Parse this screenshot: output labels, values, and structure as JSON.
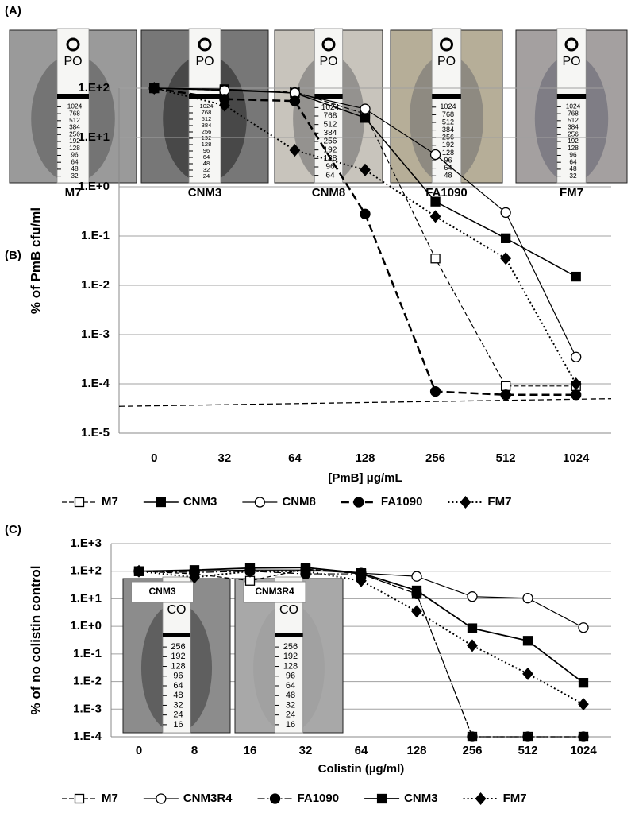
{
  "panel_a": {
    "label": "(A)",
    "photos": [
      {
        "caption": "M7",
        "strip_label": "PO",
        "strip_scale": [
          1024,
          768,
          512,
          384,
          256,
          192,
          128,
          96,
          64,
          48,
          32
        ]
      },
      {
        "caption": "CNM3",
        "strip_label": "PO",
        "strip_scale": [
          1024,
          768,
          512,
          384,
          256,
          192,
          128,
          96,
          64,
          48,
          32,
          24
        ]
      },
      {
        "caption": "CNM8",
        "strip_label": "PO",
        "strip_scale": [
          1024,
          768,
          512,
          384,
          256,
          192,
          128,
          96,
          64
        ]
      },
      {
        "caption": "FA1090",
        "strip_label": "PO",
        "strip_scale": [
          1024,
          768,
          512,
          384,
          256,
          192,
          128,
          96,
          64,
          48
        ]
      },
      {
        "caption": "FM7",
        "strip_label": "PO",
        "strip_scale": [
          1024,
          768,
          512,
          384,
          256,
          192,
          128,
          96,
          64,
          48,
          32
        ]
      }
    ]
  },
  "chart_data": [
    {
      "type": "line",
      "panel_label": "(B)",
      "ylabel": "% of PmB cfu/ml",
      "xlabel": "[PmB] μg/mL",
      "log_y": true,
      "grid": true,
      "categories": [
        0,
        32,
        64,
        128,
        256,
        512,
        1024
      ],
      "ylim": [
        1e-05,
        100
      ],
      "yticks": [
        {
          "value": 100,
          "label": "1.E+2"
        },
        {
          "value": 10,
          "label": "1.E+1"
        },
        {
          "value": 1,
          "label": "1.E+0"
        },
        {
          "value": 0.1,
          "label": "1.E-1"
        },
        {
          "value": 0.01,
          "label": "1.E-2"
        },
        {
          "value": 0.001,
          "label": "1.E-3"
        },
        {
          "value": 0.0001,
          "label": "1.E-4"
        },
        {
          "value": 1e-05,
          "label": "1.E-5"
        }
      ],
      "detection_limit": [
        3.5e-05,
        5e-05
      ],
      "series": [
        {
          "name": "M7",
          "color": "#000000",
          "marker": "square",
          "filled": false,
          "line_style": "dashed",
          "line_width": 1.2,
          "values": [
            100,
            90,
            85,
            30,
            0.035,
            9e-05,
            9e-05
          ]
        },
        {
          "name": "CNM3",
          "color": "#000000",
          "marker": "square",
          "filled": true,
          "line_style": "solid",
          "line_width": 1.5,
          "values": [
            100,
            95,
            80,
            25,
            0.5,
            0.09,
            0.015
          ]
        },
        {
          "name": "CNM8",
          "color": "#000000",
          "marker": "circle",
          "filled": false,
          "line_style": "solid",
          "line_width": 1.2,
          "values": [
            100,
            90,
            80,
            38,
            4.5,
            0.3,
            0.00035
          ]
        },
        {
          "name": "FA1090",
          "color": "#000000",
          "marker": "circle",
          "filled": true,
          "line_style": "longdash",
          "line_width": 2.5,
          "values": [
            100,
            60,
            55,
            0.28,
            7e-05,
            6e-05,
            6e-05
          ]
        },
        {
          "name": "FM7",
          "color": "#000000",
          "marker": "diamond",
          "filled": true,
          "line_style": "dotted",
          "line_width": 2,
          "values": [
            100,
            45,
            5.5,
            2.2,
            0.25,
            0.035,
            0.0001
          ]
        }
      ]
    },
    {
      "type": "line",
      "panel_label": "(C)",
      "ylabel": "% of no colistin control",
      "xlabel": "Colistin (µg/ml)",
      "log_y": true,
      "grid": true,
      "categories": [
        0,
        8,
        16,
        32,
        64,
        128,
        256,
        512,
        1024
      ],
      "ylim": [
        0.0001,
        1000
      ],
      "yticks": [
        {
          "value": 1000,
          "label": "1.E+3"
        },
        {
          "value": 100,
          "label": "1.E+2"
        },
        {
          "value": 10,
          "label": "1.E+1"
        },
        {
          "value": 1,
          "label": "1.E+0"
        },
        {
          "value": 0.1,
          "label": "1.E-1"
        },
        {
          "value": 0.01,
          "label": "1.E-2"
        },
        {
          "value": 0.001,
          "label": "1.E-3"
        },
        {
          "value": 0.0001,
          "label": "1.E-4"
        }
      ],
      "insets": [
        {
          "caption": "CNM3",
          "strip_label": "CO",
          "strip_scale": [
            256,
            192,
            128,
            96,
            64,
            48,
            32,
            24,
            16
          ]
        },
        {
          "caption": "CNM3R4",
          "strip_label": "CO",
          "strip_scale": [
            256,
            192,
            128,
            96,
            64,
            48,
            32,
            24,
            16
          ]
        }
      ],
      "series": [
        {
          "name": "M7",
          "color": "#000000",
          "marker": "square",
          "filled": false,
          "line_style": "dashed",
          "line_width": 1.2,
          "values": [
            100,
            80,
            45,
            120,
            80,
            15,
            0.0001,
            0.0001,
            0.0001
          ]
        },
        {
          "name": "CNM3R4",
          "color": "#000000",
          "marker": "circle",
          "filled": false,
          "line_style": "solid",
          "line_width": 1.2,
          "values": [
            100,
            100,
            110,
            110,
            85,
            65,
            12,
            10.5,
            0.9
          ]
        },
        {
          "name": "FA1090",
          "color": "#000000",
          "marker": "circle",
          "filled": true,
          "line_style": "dashdot",
          "line_width": 1.2,
          "values": [
            100,
            90,
            100,
            80,
            80,
            15,
            0.0001,
            0.0001,
            0.0001
          ]
        },
        {
          "name": "CNM3",
          "color": "#000000",
          "marker": "square",
          "filled": true,
          "line_style": "solid",
          "line_width": 1.8,
          "values": [
            100,
            110,
            130,
            135,
            85,
            20,
            0.85,
            0.3,
            0.009
          ]
        },
        {
          "name": "FM7",
          "color": "#000000",
          "marker": "diamond",
          "filled": true,
          "line_style": "dotted",
          "line_width": 2,
          "values": [
            100,
            60,
            100,
            100,
            45,
            3.5,
            0.2,
            0.019,
            0.0015
          ]
        }
      ]
    }
  ]
}
